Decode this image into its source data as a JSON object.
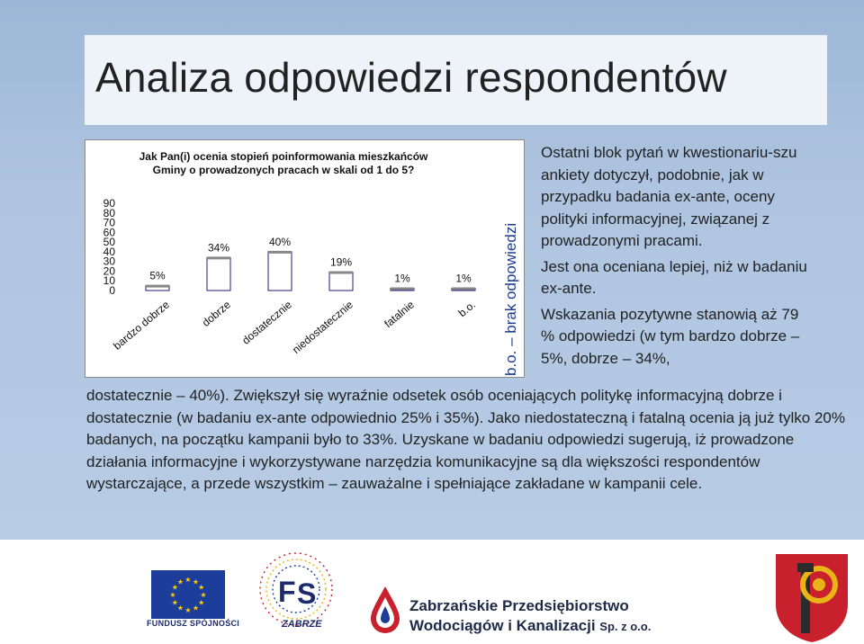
{
  "slide": {
    "title": "Analiza odpowiedzi respondentów"
  },
  "chart_data": {
    "type": "bar",
    "title": "Jak Pan(i) ocenia stopień poinformowania mieszkańców Gminy o prowadzonych pracach w skali od 1 do 5?",
    "title_lines": [
      "Jak Pan(i) ocenia stopień poinformowania mieszkańców",
      "Gminy o prowadzonych pracach w skali od 1 do 5?"
    ],
    "categories": [
      "bardzo dobrze",
      "dobrze",
      "dostatecznie",
      "niedostatecznie",
      "fatalnie",
      "b.o."
    ],
    "values": [
      5,
      34,
      40,
      19,
      1,
      1
    ],
    "value_labels": [
      "5%",
      "34%",
      "40%",
      "19%",
      "1%",
      "1%"
    ],
    "yticks": [
      "0",
      "10",
      "20",
      "30",
      "40",
      "50",
      "60",
      "70",
      "80",
      "90"
    ],
    "ylim": [
      0,
      90
    ],
    "grid": false,
    "legend": "none",
    "footnote": "b.o. – brak odpowiedzi",
    "colors": {
      "bar_fill": "#ffffff",
      "bar_stroke": "#1f1f7a",
      "bar_cap": "#888888"
    }
  },
  "side_text": {
    "p1": "Ostatni blok pytań w kwestionariu-szu ankiety dotyczył, podobnie, jak w przypadku badania ex-ante, oceny polityki informacyjnej, związanej z prowadzonymi pracami.",
    "p2": "Jest ona oceniana lepiej, niż w badaniu ex-ante.",
    "p3": "Wskazania pozytywne stanowią aż 79 % odpowiedzi (w tym bardzo dobrze – 5%, dobrze – 34%,"
  },
  "body_text": "dostatecznie – 40%). Zwiększył się wyraźnie odsetek osób oceniających politykę informacyjną dobrze i dostatecznie (w badaniu ex-ante odpowiednio 25% i 35%). Jako niedostateczną i fatalną ocenia ją już tylko 20% badanych, na początku kampanii było to 33%. Uzyskane w badaniu odpowiedzi sugerują, iż prowadzone działania informacyjne i wykorzystywane narzędzia komunikacyjne są dla większości respondentów wystarczające, a przede wszystkim – zauważalne i spełniające zakładane w kampanii cele.",
  "footer": {
    "eu_caption": "FUNDUSZ SPÓJNOŚCI",
    "zabrze_label": "ZABRZE",
    "company_line1": "Zabrzańskie Przedsiębiorstwo",
    "company_line2": "Wodociągów i Kanalizacji",
    "company_suffix": "Sp. z o.o."
  },
  "colors": {
    "slide_bg": "#aec4e0",
    "title_box": "#eef3fa",
    "eu_blue": "#1d3d9a",
    "eu_star": "#ffcc00",
    "crest_red": "#c8202c",
    "crest_gold": "#e8b417"
  }
}
